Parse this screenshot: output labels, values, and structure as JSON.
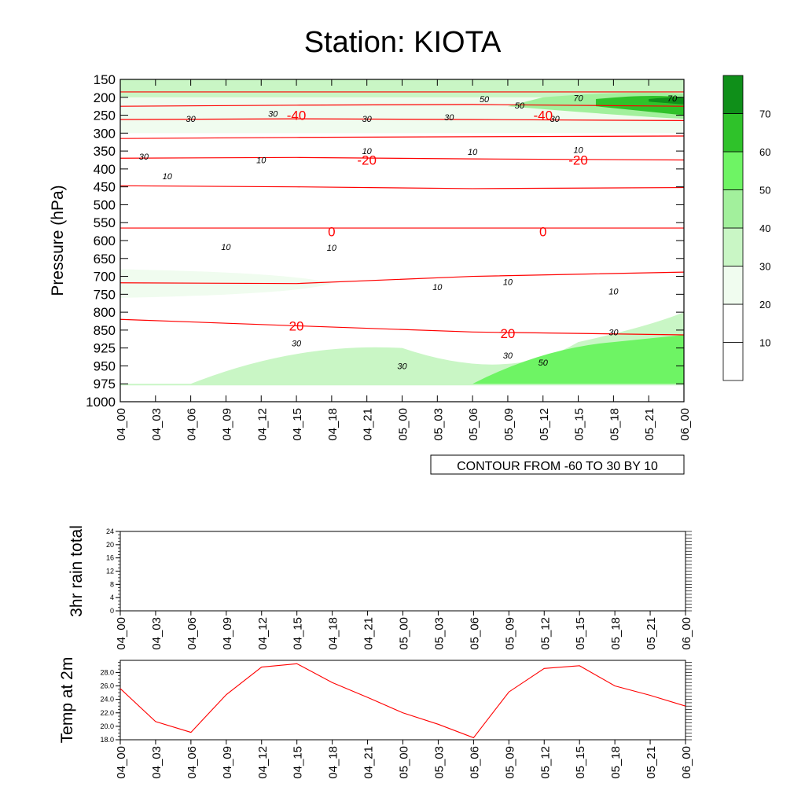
{
  "title": "Station: KIOTA",
  "colors": {
    "isotherm": "#ff0000",
    "temp_line": "#ff0000",
    "green_levels": [
      "#ffffff",
      "#ffffff",
      "#f0fcef",
      "#c9f6c5",
      "#a2f09c",
      "#6ef464",
      "#2fc22a",
      "#0f8f19"
    ]
  },
  "chart_data": [
    {
      "type": "heatmap",
      "name": "wind speed cross-section with isotherms",
      "ylabel": "Pressure (hPa)",
      "y_ticks": [
        "150",
        "200",
        "250",
        "300",
        "350",
        "400",
        "450",
        "500",
        "550",
        "600",
        "650",
        "700",
        "750",
        "800",
        "850",
        "925",
        "950",
        "975",
        "1000"
      ],
      "x_ticks": [
        "04_00",
        "04_03",
        "04_06",
        "04_09",
        "04_12",
        "04_15",
        "04_18",
        "04_21",
        "05_00",
        "05_03",
        "05_06",
        "05_09",
        "05_12",
        "05_15",
        "05_18",
        "05_21",
        "06_00"
      ],
      "colorbar_labels": [
        "10",
        "20",
        "30",
        "40",
        "50",
        "60",
        "70"
      ],
      "contour_info": "CONTOUR FROM -60 TO 30 BY 10",
      "isotherm_labels": [
        {
          "text": "-40",
          "x": "04_15",
          "p": "250"
        },
        {
          "text": "-40",
          "x": "05_12",
          "p": "250"
        },
        {
          "text": "-20",
          "x": "04_21",
          "p": "375"
        },
        {
          "text": "-20",
          "x": "05_15",
          "p": "375"
        },
        {
          "text": "0",
          "x": "04_18",
          "p": "575"
        },
        {
          "text": "0",
          "x": "05_12",
          "p": "575"
        },
        {
          "text": "20",
          "x": "04_15",
          "p": "838"
        },
        {
          "text": "20",
          "x": "05_09",
          "p": "863"
        }
      ],
      "isotherm_lines": [
        {
          "p": [
            "185",
            "185",
            "185",
            "185"
          ]
        },
        {
          "p": [
            "225",
            "222",
            "220",
            "225"
          ]
        },
        {
          "p": [
            "262",
            "260",
            "262",
            "265"
          ]
        },
        {
          "p": [
            "315",
            "312",
            "310",
            "308"
          ]
        },
        {
          "p": [
            "370",
            "368",
            "372",
            "375"
          ]
        },
        {
          "p": [
            "447",
            "450",
            "455",
            "452"
          ]
        },
        {
          "p": [
            "565",
            "565",
            "565",
            "565"
          ]
        },
        {
          "p": [
            "718",
            "720",
            "700",
            "688"
          ]
        },
        {
          "p": [
            "820",
            "838",
            "858",
            "870"
          ]
        }
      ],
      "speed_labels": [
        {
          "text": "30",
          "x": "04_06",
          "p": "260"
        },
        {
          "text": "30",
          "x": "04_13",
          "p": "245"
        },
        {
          "text": "30",
          "x": "04_21",
          "p": "260"
        },
        {
          "text": "30",
          "x": "05_04",
          "p": "255"
        },
        {
          "text": "30",
          "x": "05_13",
          "p": "260"
        },
        {
          "text": "30",
          "x": "04_02",
          "p": "365"
        },
        {
          "text": "50",
          "x": "05_07",
          "p": "205"
        },
        {
          "text": "50",
          "x": "05_10",
          "p": "222"
        },
        {
          "text": "70",
          "x": "05_15",
          "p": "202"
        },
        {
          "text": "70",
          "x": "05_23",
          "p": "203"
        },
        {
          "text": "10",
          "x": "04_21",
          "p": "350"
        },
        {
          "text": "10",
          "x": "05_06",
          "p": "352"
        },
        {
          "text": "10",
          "x": "05_15",
          "p": "346"
        },
        {
          "text": "10",
          "x": "04_12",
          "p": "375"
        },
        {
          "text": "10",
          "x": "04_04",
          "p": "420"
        },
        {
          "text": "10",
          "x": "04_09",
          "p": "618"
        },
        {
          "text": "10",
          "x": "04_18",
          "p": "620"
        },
        {
          "text": "10",
          "x": "05_03",
          "p": "730"
        },
        {
          "text": "10",
          "x": "05_09",
          "p": "715"
        },
        {
          "text": "10",
          "x": "05_18",
          "p": "742"
        },
        {
          "text": "30",
          "x": "04_15",
          "p": "905"
        },
        {
          "text": "30",
          "x": "05_00",
          "p": "950"
        },
        {
          "text": "30",
          "x": "05_09",
          "p": "935"
        },
        {
          "text": "30",
          "x": "05_18",
          "p": "858"
        },
        {
          "text": "50",
          "x": "05_12",
          "p": "945"
        }
      ]
    },
    {
      "type": "bar",
      "name": "3hr rain total",
      "ylabel": "3hr rain total",
      "ylim": [
        0,
        24
      ],
      "y_ticks": [
        "0",
        "4",
        "8",
        "12",
        "16",
        "20",
        "24"
      ],
      "categories": [
        "04_00",
        "04_03",
        "04_06",
        "04_09",
        "04_12",
        "04_15",
        "04_18",
        "04_21",
        "05_00",
        "05_03",
        "05_06",
        "05_09",
        "05_12",
        "05_15",
        "05_18",
        "05_21",
        "06_00"
      ],
      "values": [
        0,
        0,
        0,
        0,
        0,
        0,
        0,
        0,
        0,
        0,
        0,
        0,
        0,
        0,
        0,
        0,
        0
      ]
    },
    {
      "type": "line",
      "name": "Temp at 2m",
      "ylabel": "Temp at 2m",
      "ylim": [
        18.0,
        29.8
      ],
      "y_ticks": [
        "18.0",
        "20.0",
        "22.0",
        "24.0",
        "26.0",
        "28.0"
      ],
      "categories": [
        "04_00",
        "04_03",
        "04_06",
        "04_09",
        "04_12",
        "04_15",
        "04_18",
        "04_21",
        "05_00",
        "05_03",
        "05_06",
        "05_09",
        "05_12",
        "05_15",
        "05_18",
        "05_21",
        "06_00"
      ],
      "values": [
        25.6,
        20.7,
        19.1,
        24.7,
        28.8,
        29.3,
        26.5,
        24.3,
        22.0,
        20.3,
        18.3,
        25.1,
        28.6,
        29.0,
        26.0,
        24.6,
        23.0
      ]
    }
  ]
}
